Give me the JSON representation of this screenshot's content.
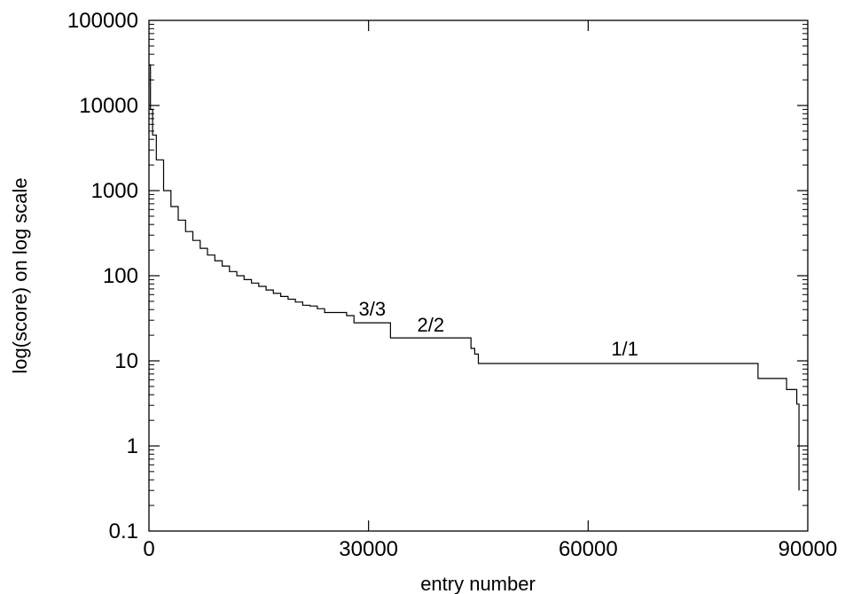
{
  "chart_data": {
    "type": "line",
    "title": "",
    "xlabel": "entry number",
    "ylabel": "log(score) on log scale",
    "xlim": [
      0,
      90000
    ],
    "ylim": [
      0.1,
      100000
    ],
    "yscale": "log",
    "grid": false,
    "x_ticks": [
      0,
      30000,
      60000,
      90000
    ],
    "x_tick_labels": [
      "0",
      "30000",
      "60000",
      "90000"
    ],
    "y_ticks": [
      0.1,
      1,
      10,
      100,
      1000,
      10000,
      100000
    ],
    "y_tick_labels": [
      "0.1",
      "1",
      "10",
      "100",
      "1000",
      "10000",
      "100000"
    ],
    "series": [
      {
        "x": [
          0,
          200,
          500,
          1000,
          2000,
          3000,
          4000,
          5000,
          6000,
          7000,
          8000,
          9000,
          10000,
          11000,
          12000,
          13000,
          14000,
          15000,
          16000,
          17000,
          18000,
          19000,
          20000,
          21000,
          22000,
          23000,
          24000,
          25000,
          26000,
          27000,
          28000,
          30000,
          32000,
          33000,
          35000,
          38000,
          41000,
          43000,
          44000,
          44500,
          45000,
          50000,
          60000,
          70000,
          80000,
          83000,
          83200,
          85000,
          87000,
          87100,
          88000,
          88500,
          88600,
          88800
        ],
        "y": [
          30000,
          9000,
          4500,
          2300,
          1000,
          650,
          450,
          330,
          260,
          210,
          175,
          150,
          130,
          112,
          100,
          90,
          82,
          75,
          68,
          62,
          57,
          53,
          49,
          45,
          44,
          41,
          37,
          37,
          37,
          34,
          28,
          28,
          28,
          18.6,
          18.6,
          18.6,
          18.6,
          18.6,
          14,
          12,
          9.3,
          9.3,
          9.3,
          9.3,
          9.3,
          9.3,
          6.2,
          6.2,
          6.2,
          4.6,
          4.6,
          3.1,
          3.1,
          0.3
        ]
      }
    ],
    "annotations": [
      {
        "text": "3/3",
        "x": 30500,
        "y": 34
      },
      {
        "text": "2/2",
        "x": 38500,
        "y": 22
      },
      {
        "text": "1/1",
        "x": 65000,
        "y": 11.5
      }
    ]
  }
}
